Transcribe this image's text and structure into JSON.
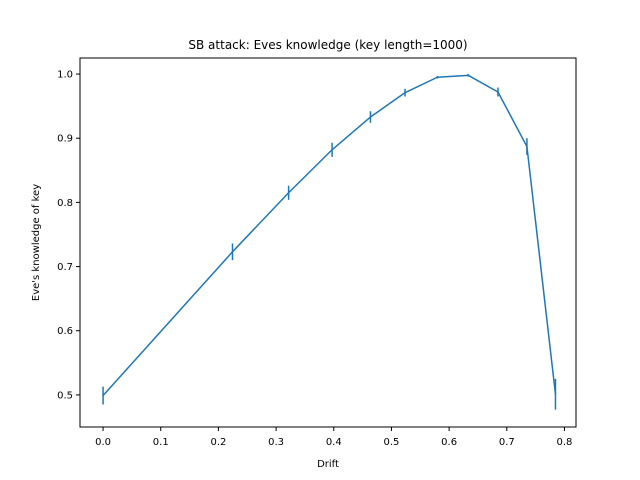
{
  "chart_data": {
    "type": "line",
    "title": "SB attack: Eves knowledge (key length=1000)",
    "xlabel": "Drift",
    "ylabel": "Eve's knowledge of key",
    "xlim": [
      -0.04,
      0.82
    ],
    "ylim": [
      0.45,
      1.025
    ],
    "xticks": [
      0.0,
      0.1,
      0.2,
      0.3,
      0.4,
      0.5,
      0.6,
      0.7,
      0.8
    ],
    "xtick_labels": [
      "0.0",
      "0.1",
      "0.2",
      "0.3",
      "0.4",
      "0.5",
      "0.6",
      "0.7",
      "0.8"
    ],
    "yticks": [
      0.5,
      0.6,
      0.7,
      0.8,
      0.9,
      1.0
    ],
    "ytick_labels": [
      "0.5",
      "0.6",
      "0.7",
      "0.8",
      "0.9",
      "1.0"
    ],
    "grid": false,
    "line_color": "#1f77b4",
    "series": [
      {
        "x": [
          0.0,
          0.2244,
          0.3217,
          0.3971,
          0.4636,
          0.5236,
          0.5796,
          0.6331,
          0.6847,
          0.7349,
          0.7844
        ],
        "y": [
          0.499,
          0.723,
          0.815,
          0.882,
          0.933,
          0.971,
          0.995,
          0.998,
          0.972,
          0.887,
          0.501
        ],
        "yerr": [
          0.014,
          0.013,
          0.011,
          0.011,
          0.009,
          0.006,
          0.002,
          0.002,
          0.007,
          0.013,
          0.024
        ]
      }
    ]
  }
}
